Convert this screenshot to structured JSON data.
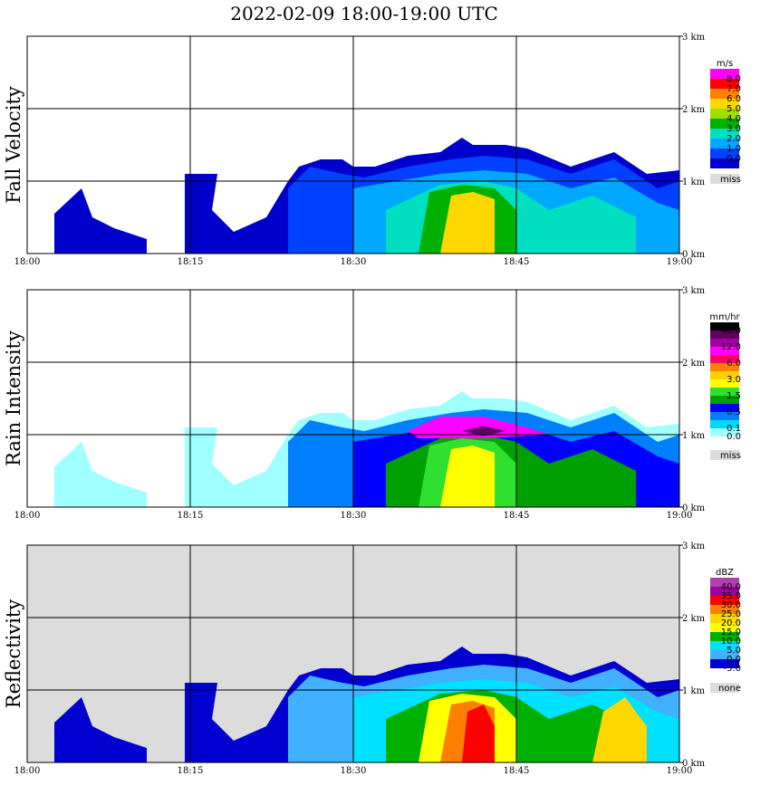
{
  "chart_data": {
    "type": "heatmap",
    "title": "2022-02-09   18:00-19:00 UTC",
    "x_ticks": [
      "18:00",
      "18:15",
      "18:30",
      "18:45",
      "19:00"
    ],
    "y_ticks": [
      "0 km",
      "1 km",
      "2 km",
      "3 km"
    ],
    "xlim_minutes": [
      0,
      60
    ],
    "ylim_km": [
      0,
      3.0
    ],
    "missing_label": "miss",
    "panels": [
      {
        "name": "fall-velocity",
        "ylabel": "Fall Velocity",
        "unit": "m/s",
        "background": "#ffffff",
        "levels": [
          "8.0",
          "7.0",
          "6.0",
          "5.0",
          "4.0",
          "3.0",
          "2.0",
          "1.0",
          "0.0"
        ],
        "colors": [
          "#ff00ff",
          "#ff0000",
          "#ff7f00",
          "#ffd700",
          "#a0e000",
          "#00b000",
          "#00e0c0",
          "#00a8ff",
          "#0040ff",
          "#0000cc"
        ],
        "missing_label": "miss"
      },
      {
        "name": "rain-intensity",
        "ylabel": "Rain Intensity",
        "unit": "mm/hr",
        "background": "#ffffff",
        "levels": [
          "48.0",
          "",
          "12.0",
          "",
          "6.0",
          "",
          "3.0",
          "",
          "1.5",
          "",
          "0.5",
          "",
          "0.1",
          "0.0"
        ],
        "colors": [
          "#000000",
          "#600060",
          "#a000a0",
          "#ff00ff",
          "#ff0060",
          "#ff8000",
          "#ffd000",
          "#ffff00",
          "#30e030",
          "#00a000",
          "#0000ff",
          "#0080ff",
          "#00d8ff",
          "#a0ffff",
          "#ffffff"
        ],
        "missing_label": "miss"
      },
      {
        "name": "reflectivity",
        "ylabel": "Reflectivity",
        "unit": "dBZ",
        "background": "#dcdcdc",
        "levels": [
          "40.0",
          "35.0",
          "30.0",
          "25.0",
          "20.0",
          "15.0",
          "10.0",
          "5.0",
          "0.0",
          "-5.0"
        ],
        "colors": [
          "#b040b0",
          "#a000a0",
          "#ff0000",
          "#ff7f00",
          "#ffd700",
          "#ffff00",
          "#00b000",
          "#00e0ff",
          "#40b0ff",
          "#0000d0",
          "#ffffff"
        ],
        "missing_label": "none"
      }
    ]
  }
}
